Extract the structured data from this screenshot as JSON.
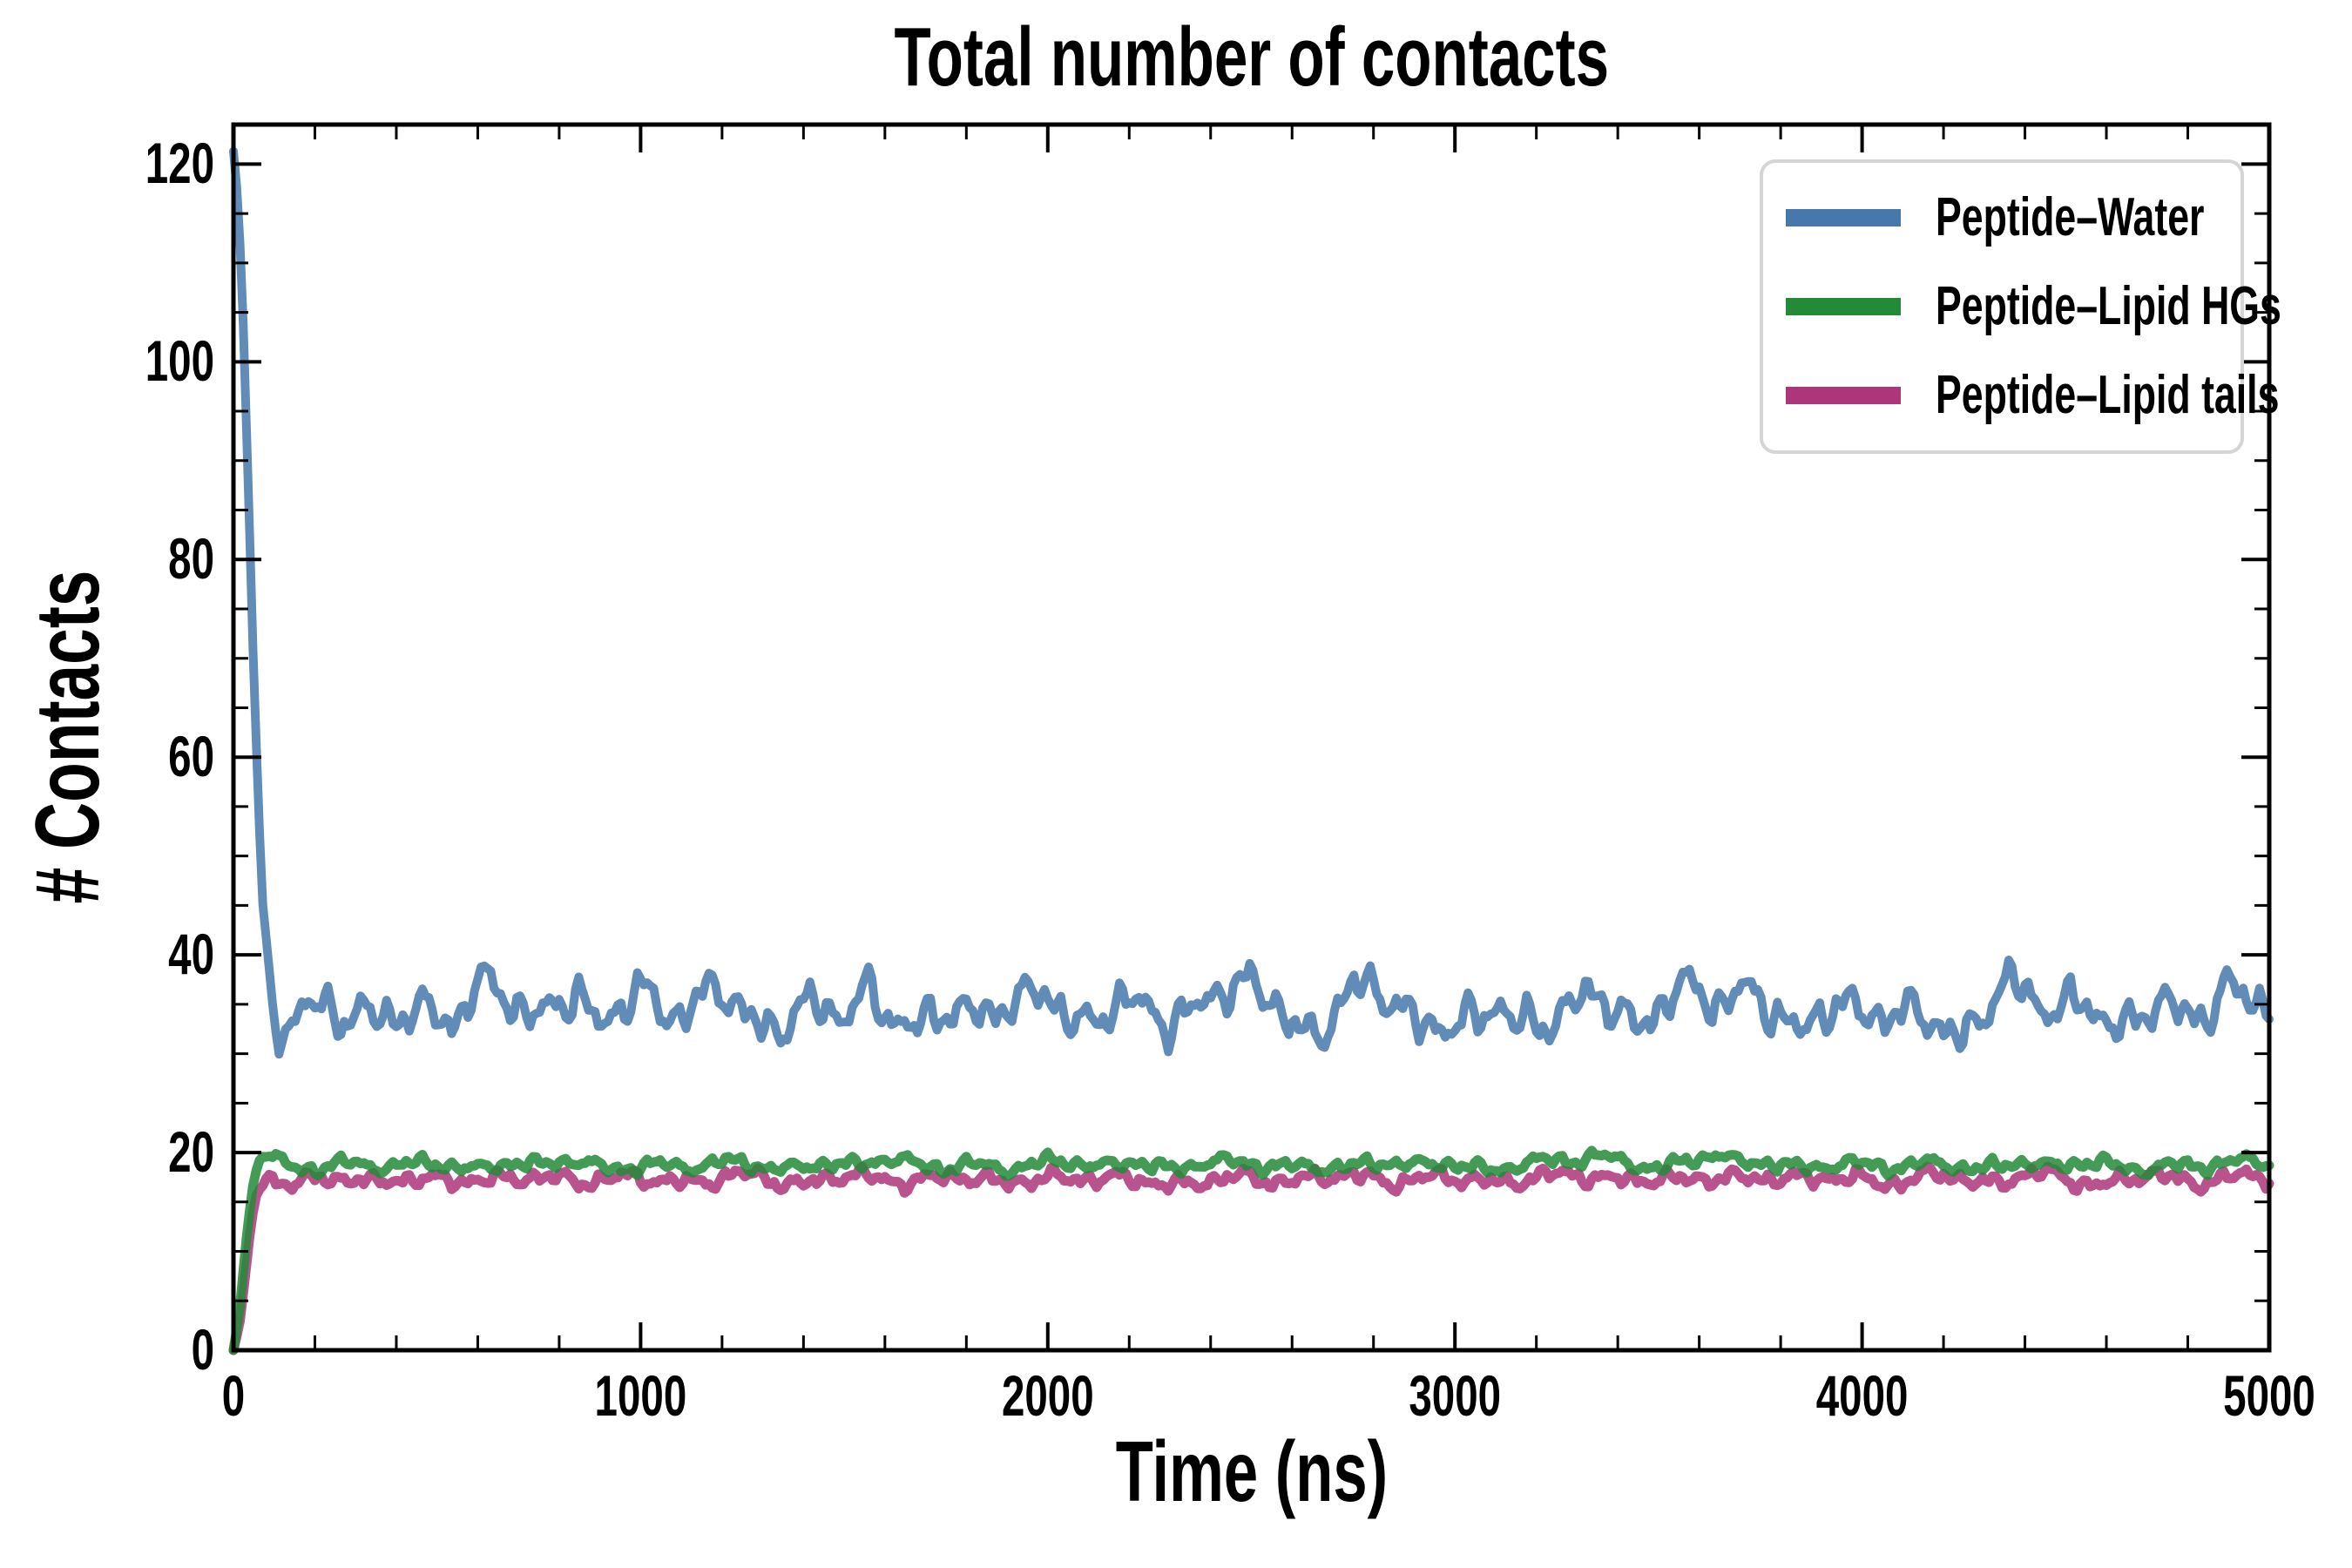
{
  "chart_data": {
    "type": "line",
    "title": "Total number of contacts",
    "xlabel": "Time (ns)",
    "ylabel": "# Contacts",
    "xlim": [
      0,
      5000
    ],
    "ylim": [
      0,
      124
    ],
    "x_major_ticks": [
      0,
      1000,
      2000,
      3000,
      4000,
      5000
    ],
    "x_tick_labels": [
      "0",
      "1000",
      "2000",
      "3000",
      "4000",
      "5000"
    ],
    "x_minor_step": 200,
    "y_major_ticks": [
      0,
      20,
      40,
      60,
      80,
      100,
      120
    ],
    "y_tick_labels": [
      "0",
      "20",
      "40",
      "60",
      "80",
      "100",
      "120"
    ],
    "y_minor_step": 5,
    "grid": false,
    "legend_position": "upper right",
    "axis_color": "#000000",
    "line_alpha": 0.85,
    "sample_step_ns": 8,
    "noise_wavelengths_ns": [
      17,
      29,
      47,
      79,
      131,
      223,
      367
    ],
    "noise_weights": [
      0.3,
      0.5,
      0.7,
      1.0,
      0.9,
      0.7,
      0.5
    ],
    "noise_norm": 1.3,
    "start_values": {
      "Peptide–Water": 121,
      "Peptide–Lipid HGs": 0,
      "Peptide–Lipid tails": 0
    },
    "equilibrium_means": {
      "Peptide–Water": 34.2,
      "Peptide–Lipid HGs": 18.8,
      "Peptide–Lipid tails": 17.3
    },
    "draw_order": [
      0,
      2,
      1
    ],
    "series": [
      {
        "name": "Peptide–Water",
        "color": "#4678ab",
        "linewidth": 10,
        "seed": 7,
        "noise_amp": 1.3,
        "noise_ramp_ns": 100,
        "clamp": [
          29.8,
          122
        ],
        "anchors": [
          [
            0,
            121.3
          ],
          [
            12,
            116
          ],
          [
            24,
            104
          ],
          [
            36,
            88
          ],
          [
            48,
            71
          ],
          [
            60,
            56
          ],
          [
            72,
            45
          ],
          [
            84,
            38.5
          ],
          [
            96,
            35
          ],
          [
            110,
            33.8
          ],
          [
            140,
            34.3
          ],
          [
            180,
            34.8
          ],
          [
            220,
            33.6
          ],
          [
            260,
            33.2
          ],
          [
            300,
            34.6
          ],
          [
            350,
            33.4
          ],
          [
            400,
            33.0
          ],
          [
            450,
            34.5
          ],
          [
            500,
            35.2
          ],
          [
            550,
            34.0
          ],
          [
            600,
            36.2
          ],
          [
            650,
            36.8
          ],
          [
            700,
            34.5
          ],
          [
            750,
            33.2
          ],
          [
            800,
            34.8
          ],
          [
            850,
            35.6
          ],
          [
            900,
            34.2
          ],
          [
            950,
            35.4
          ],
          [
            1000,
            35.8
          ],
          [
            1050,
            34.6
          ],
          [
            1100,
            34.0
          ],
          [
            1150,
            35.2
          ],
          [
            1200,
            35.8
          ],
          [
            1250,
            34.4
          ],
          [
            1300,
            33.6
          ],
          [
            1350,
            33.2
          ],
          [
            1400,
            34.4
          ],
          [
            1450,
            35.0
          ],
          [
            1500,
            34.2
          ],
          [
            1550,
            35.4
          ],
          [
            1600,
            33.4
          ],
          [
            1650,
            33.0
          ],
          [
            1700,
            34.2
          ],
          [
            1750,
            34.8
          ],
          [
            1800,
            33.8
          ],
          [
            1850,
            34.4
          ],
          [
            1900,
            35.6
          ],
          [
            1950,
            34.6
          ],
          [
            2000,
            35.2
          ],
          [
            2050,
            34.0
          ],
          [
            2100,
            33.4
          ],
          [
            2150,
            34.6
          ],
          [
            2200,
            35.6
          ],
          [
            2250,
            35.0
          ],
          [
            2300,
            33.6
          ],
          [
            2350,
            32.8
          ],
          [
            2400,
            35.0
          ],
          [
            2450,
            37.2
          ],
          [
            2500,
            37.6
          ],
          [
            2550,
            35.4
          ],
          [
            2600,
            33.0
          ],
          [
            2650,
            32.4
          ],
          [
            2700,
            34.2
          ],
          [
            2750,
            35.6
          ],
          [
            2800,
            36.0
          ],
          [
            2850,
            35.8
          ],
          [
            2900,
            33.2
          ],
          [
            2950,
            32.6
          ],
          [
            3000,
            33.0
          ],
          [
            3050,
            34.8
          ],
          [
            3100,
            35.4
          ],
          [
            3150,
            31.8
          ],
          [
            3200,
            32.4
          ],
          [
            3250,
            34.0
          ],
          [
            3300,
            35.2
          ],
          [
            3350,
            35.8
          ],
          [
            3400,
            34.6
          ],
          [
            3450,
            33.8
          ],
          [
            3500,
            34.8
          ],
          [
            3550,
            35.6
          ],
          [
            3600,
            36.2
          ],
          [
            3650,
            35.0
          ],
          [
            3700,
            36.0
          ],
          [
            3750,
            35.2
          ],
          [
            3800,
            34.0
          ],
          [
            3850,
            33.4
          ],
          [
            3900,
            34.6
          ],
          [
            3950,
            33.8
          ],
          [
            4000,
            34.4
          ],
          [
            4050,
            34.0
          ],
          [
            4100,
            33.2
          ],
          [
            4150,
            33.8
          ],
          [
            4200,
            33.0
          ],
          [
            4250,
            32.6
          ],
          [
            4300,
            34.4
          ],
          [
            4350,
            36.4
          ],
          [
            4400,
            36.8
          ],
          [
            4450,
            34.6
          ],
          [
            4500,
            33.6
          ],
          [
            4550,
            34.8
          ],
          [
            4600,
            34.0
          ],
          [
            4650,
            33.4
          ],
          [
            4700,
            34.6
          ],
          [
            4750,
            35.0
          ],
          [
            4800,
            33.8
          ],
          [
            4850,
            34.4
          ],
          [
            4900,
            35.6
          ],
          [
            4950,
            34.8
          ],
          [
            5000,
            36.0
          ]
        ]
      },
      {
        "name": "Peptide–Lipid HGs",
        "color": "#238a38",
        "linewidth": 11,
        "seed": 42,
        "noise_amp": 0.4,
        "noise_ramp_ns": 80,
        "clamp": [
          0,
          20.2
        ],
        "anchors": [
          [
            0,
            0
          ],
          [
            15,
            4
          ],
          [
            30,
            10.5
          ],
          [
            45,
            16
          ],
          [
            60,
            18.8
          ],
          [
            75,
            19.9
          ],
          [
            95,
            19.4
          ],
          [
            130,
            18.9
          ],
          [
            200,
            18.6
          ],
          [
            300,
            18.8
          ],
          [
            400,
            18.5
          ],
          [
            500,
            18.9
          ],
          [
            600,
            18.6
          ],
          [
            700,
            18.8
          ],
          [
            800,
            19.0
          ],
          [
            900,
            18.5
          ],
          [
            1000,
            18.8
          ],
          [
            1100,
            18.6
          ],
          [
            1200,
            18.9
          ],
          [
            1300,
            18.5
          ],
          [
            1400,
            18.7
          ],
          [
            1500,
            18.9
          ],
          [
            1600,
            19.1
          ],
          [
            1700,
            18.6
          ],
          [
            1800,
            18.8
          ],
          [
            1900,
            18.5
          ],
          [
            2000,
            18.9
          ],
          [
            2100,
            18.7
          ],
          [
            2200,
            19.0
          ],
          [
            2300,
            18.6
          ],
          [
            2400,
            18.8
          ],
          [
            2500,
            18.9
          ],
          [
            2600,
            18.5
          ],
          [
            2700,
            18.8
          ],
          [
            2800,
            18.6
          ],
          [
            2900,
            18.9
          ],
          [
            3000,
            18.7
          ],
          [
            3100,
            18.5
          ],
          [
            3200,
            18.9
          ],
          [
            3300,
            19.3
          ],
          [
            3350,
            19.6
          ],
          [
            3400,
            19.1
          ],
          [
            3500,
            18.7
          ],
          [
            3600,
            19.2
          ],
          [
            3650,
            19.8
          ],
          [
            3700,
            19.0
          ],
          [
            3800,
            18.6
          ],
          [
            3900,
            18.9
          ],
          [
            4000,
            18.7
          ],
          [
            4100,
            18.5
          ],
          [
            4200,
            18.8
          ],
          [
            4300,
            18.6
          ],
          [
            4400,
            18.9
          ],
          [
            4500,
            18.6
          ],
          [
            4600,
            18.8
          ],
          [
            4700,
            18.5
          ],
          [
            4800,
            18.7
          ],
          [
            4900,
            18.9
          ],
          [
            5000,
            18.8
          ]
        ]
      },
      {
        "name": "Peptide–Lipid tails",
        "color": "#ad3579",
        "linewidth": 11,
        "seed": 23,
        "noise_amp": 0.5,
        "noise_ramp_ns": 80,
        "clamp": [
          0,
          18.6
        ],
        "anchors": [
          [
            0,
            0
          ],
          [
            15,
            2.5
          ],
          [
            30,
            7.5
          ],
          [
            45,
            13
          ],
          [
            60,
            16.2
          ],
          [
            80,
            17.4
          ],
          [
            120,
            17.1
          ],
          [
            200,
            17.4
          ],
          [
            300,
            17.2
          ],
          [
            350,
            16.8
          ],
          [
            400,
            17.5
          ],
          [
            500,
            17.1
          ],
          [
            600,
            17.4
          ],
          [
            700,
            17.2
          ],
          [
            800,
            17.5
          ],
          [
            900,
            17.3
          ],
          [
            1000,
            17.1
          ],
          [
            1100,
            17.4
          ],
          [
            1200,
            17.2
          ],
          [
            1300,
            17.5
          ],
          [
            1400,
            17.1
          ],
          [
            1500,
            17.3
          ],
          [
            1600,
            17.5
          ],
          [
            1700,
            17.2
          ],
          [
            1800,
            17.4
          ],
          [
            1900,
            17.1
          ],
          [
            2000,
            17.3
          ],
          [
            2100,
            17.5
          ],
          [
            2200,
            17.2
          ],
          [
            2300,
            16.9
          ],
          [
            2400,
            17.1
          ],
          [
            2500,
            17.3
          ],
          [
            2600,
            17.5
          ],
          [
            2700,
            17.2
          ],
          [
            2800,
            17.6
          ],
          [
            2900,
            17.3
          ],
          [
            3000,
            17.1
          ],
          [
            3100,
            17.4
          ],
          [
            3200,
            17.2
          ],
          [
            3300,
            17.8
          ],
          [
            3400,
            17.4
          ],
          [
            3500,
            17.1
          ],
          [
            3600,
            17.5
          ],
          [
            3700,
            17.3
          ],
          [
            3800,
            17.6
          ],
          [
            3900,
            17.2
          ],
          [
            4000,
            17.4
          ],
          [
            4100,
            17.1
          ],
          [
            4200,
            17.5
          ],
          [
            4300,
            17.2
          ],
          [
            4400,
            17.6
          ],
          [
            4500,
            17.3
          ],
          [
            4600,
            17.1
          ],
          [
            4700,
            17.4
          ],
          [
            4800,
            17.2
          ],
          [
            4900,
            17.5
          ],
          [
            5000,
            17.4
          ]
        ]
      }
    ]
  },
  "legend": {
    "border_color": "#d5d5d5",
    "entries": [
      {
        "label": "Peptide–Water",
        "color": "#4678ab"
      },
      {
        "label": "Peptide–Lipid HGs",
        "color": "#238a38"
      },
      {
        "label": "Peptide–Lipid tails",
        "color": "#ad3579"
      }
    ]
  }
}
